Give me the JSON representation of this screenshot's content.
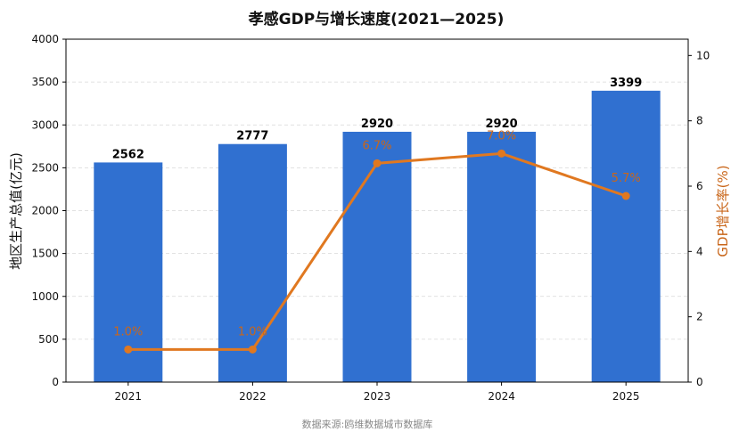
{
  "chart_data": {
    "type": "bar",
    "title": "孝感GDP与增长速度(2021—2025)",
    "categories": [
      "2021",
      "2022",
      "2023",
      "2024",
      "2025"
    ],
    "series": [
      {
        "name": "地区生产总值",
        "kind": "bar",
        "axis": "left",
        "color": "#3070d0",
        "values": [
          2562,
          2777,
          2920,
          2920,
          3399
        ],
        "labels": [
          "2562",
          "2777",
          "2920",
          "2920",
          "3399"
        ]
      },
      {
        "name": "GDP增长率",
        "kind": "line",
        "axis": "right",
        "color": "#e07820",
        "values": [
          1.0,
          1.0,
          6.7,
          7.0,
          5.7
        ],
        "labels": [
          "1.0%",
          "1.0%",
          "6.7%",
          "7.0%",
          "5.7%"
        ]
      }
    ],
    "ylabel": "地区生产总值(亿元)",
    "ylabel_right": "GDP增长率(%)",
    "ylim": [
      0,
      4000
    ],
    "ylim_right": [
      0,
      10.5
    ],
    "yticks": [
      0,
      500,
      1000,
      1500,
      2000,
      2500,
      3000,
      3500,
      4000
    ],
    "yticks_right": [
      0,
      2,
      4,
      6,
      8,
      10
    ],
    "grid": true,
    "source_note": "数据来源:鸥维数据城市数据库"
  }
}
